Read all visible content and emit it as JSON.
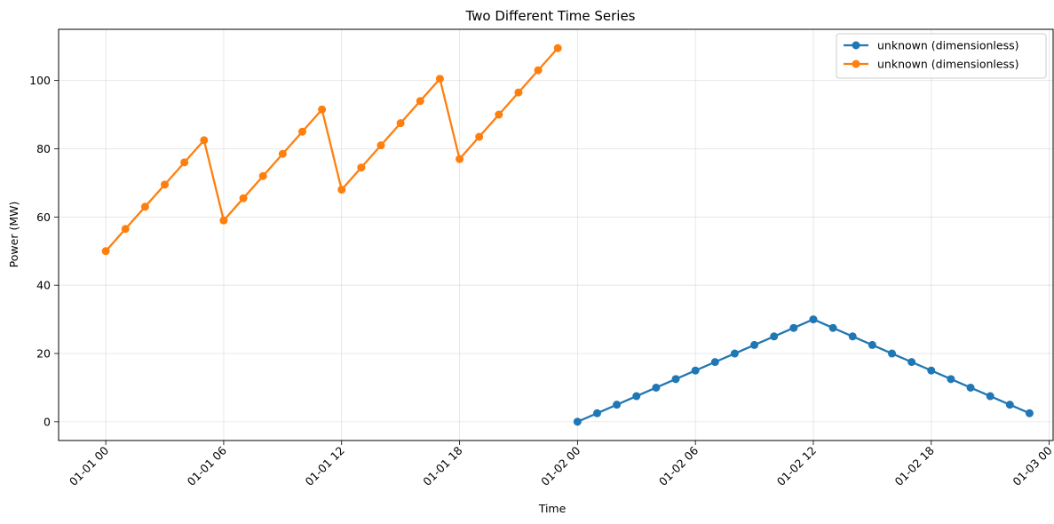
{
  "chart_data": {
    "type": "line",
    "title": "Two Different Time Series",
    "xlabel": "Time",
    "ylabel": "Power (MW)",
    "x_ticks": [
      "01-01 00",
      "01-01 06",
      "01-01 12",
      "01-01 18",
      "01-02 00",
      "01-02 06",
      "01-02 12",
      "01-02 18",
      "01-03 00"
    ],
    "x_tick_hours": [
      0,
      6,
      12,
      18,
      24,
      30,
      36,
      42,
      48
    ],
    "xlim_hours": [
      -2.4,
      48.2
    ],
    "y_ticks": [
      0,
      20,
      40,
      60,
      80,
      100
    ],
    "ylim": [
      -5.5,
      115
    ],
    "grid": true,
    "legend_position": "top-right",
    "series": [
      {
        "name": "unknown (dimensionless)",
        "color": "#1f77b4",
        "x_hours": [
          24,
          25,
          26,
          27,
          28,
          29,
          30,
          31,
          32,
          33,
          34,
          35,
          36,
          37,
          38,
          39,
          40,
          41,
          42,
          43,
          44,
          45,
          46,
          47
        ],
        "values": [
          0,
          2.5,
          5,
          7.5,
          10,
          12.5,
          15,
          17.5,
          20,
          22.5,
          25,
          27.5,
          30,
          27.5,
          25,
          22.5,
          20,
          17.5,
          15,
          12.5,
          10,
          7.5,
          5,
          2.5
        ]
      },
      {
        "name": "unknown (dimensionless)",
        "color": "#ff7f0e",
        "x_hours": [
          0,
          1,
          2,
          3,
          4,
          5,
          6,
          7,
          8,
          9,
          10,
          11,
          12,
          13,
          14,
          15,
          16,
          17,
          18,
          19,
          20,
          21,
          22,
          23
        ],
        "values": [
          50,
          56.5,
          63,
          69.5,
          76,
          82.5,
          59,
          65.5,
          72,
          78.5,
          85,
          91.5,
          68,
          74.5,
          81,
          87.5,
          94,
          100.5,
          77,
          83.5,
          90,
          96.5,
          103,
          109.5
        ]
      }
    ]
  }
}
